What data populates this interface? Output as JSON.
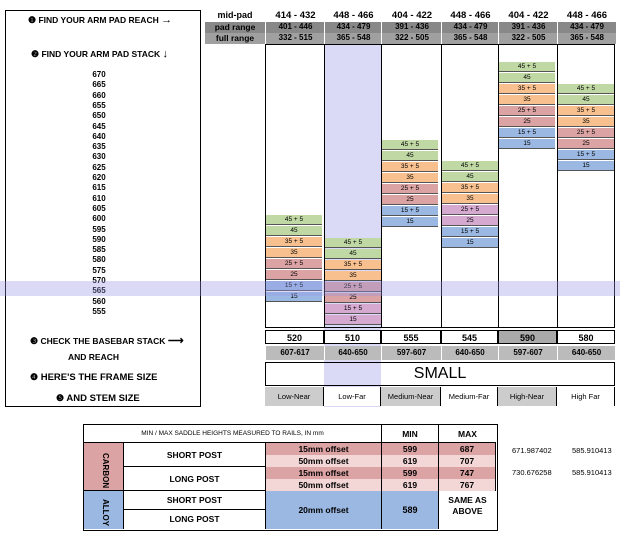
{
  "steps": {
    "step1": "FIND YOUR ARM PAD REACH",
    "step2": "FIND YOUR ARM PAD STACK",
    "step3": "CHECK THE BASEBAR STACK",
    "step3b": "AND REACH",
    "step4": "HERE'S THE FRAME SIZE",
    "step5": "AND STEM SIZE",
    "arrow_right": "→",
    "arrow_down": "↓",
    "arrow_long": "⟶"
  },
  "header": {
    "row_labels": [
      "mid-pad",
      "pad range",
      "full range"
    ],
    "columns": [
      {
        "mid": "414 - 432",
        "pad": "401 - 446",
        "full": "332 - 515"
      },
      {
        "mid": "448 - 466",
        "pad": "434 - 479",
        "full": "365 - 548"
      },
      {
        "mid": "404 - 422",
        "pad": "391 - 436",
        "full": "322 - 505"
      },
      {
        "mid": "448 - 466",
        "pad": "434 - 479",
        "full": "365 - 548"
      },
      {
        "mid": "404 - 422",
        "pad": "391 - 436",
        "full": "322 - 505"
      },
      {
        "mid": "448 - 466",
        "pad": "434 - 479",
        "full": "365 - 548"
      }
    ]
  },
  "stack_values": [
    "670",
    "665",
    "660",
    "655",
    "650",
    "645",
    "640",
    "635",
    "630",
    "625",
    "620",
    "615",
    "610",
    "605",
    "600",
    "595",
    "590",
    "585",
    "580",
    "575",
    "570",
    "565",
    "560",
    "555"
  ],
  "spacer_cells": {
    "c1": [
      "45 + 5",
      "45",
      "35 + 5",
      "35",
      "25 + 5",
      "25",
      "15 + 5",
      "15"
    ],
    "c2": [
      "45 + 5",
      "45",
      "35 + 5",
      "35",
      "25 + 5",
      "25",
      "15 + 5",
      "15"
    ],
    "c3": [
      "45 + 5",
      "45",
      "35 + 5",
      "35",
      "25 + 5",
      "25",
      "15 + 5",
      "15"
    ],
    "c4": [
      "45 + 5",
      "45",
      "35 + 5",
      "35",
      "25 + 5",
      "25",
      "15 + 5",
      "15"
    ],
    "c5": [
      "45 + 5",
      "45",
      "35 + 5",
      "35",
      "25 + 5",
      "25",
      "15 + 5",
      "15"
    ],
    "c6": [
      "45 + 5",
      "45",
      "35 + 5",
      "35",
      "25 + 5",
      "25",
      "15 + 5",
      "15"
    ]
  },
  "basebar_stack": [
    "520",
    "510",
    "555",
    "545",
    "590",
    "580"
  ],
  "basebar_reach": [
    "607-617",
    "640-650",
    "597-607",
    "640-650",
    "597-607",
    "640-650"
  ],
  "frame_size": "SMALL",
  "stems": [
    "Low-Near",
    "Low-Far",
    "Medium-Near",
    "Medium-Far",
    "High-Near",
    "High Far"
  ],
  "saddle": {
    "title": "MIN / MAX SADDLE HEIGHTS MEASURED TO RAILS, IN mm",
    "min_label": "MIN",
    "max_label": "MAX",
    "carbon_label": "CARBON",
    "alloy_label": "ALLOY",
    "short_post": "SHORT POST",
    "long_post": "LONG POST",
    "rows": [
      {
        "offset": "15mm offset",
        "min": "599",
        "max": "687"
      },
      {
        "offset": "50mm offset",
        "min": "619",
        "max": "707"
      },
      {
        "offset": "15mm offset",
        "min": "599",
        "max": "747"
      },
      {
        "offset": "50mm offset",
        "min": "619",
        "max": "767"
      }
    ],
    "alloy_offset": "20mm offset",
    "alloy_min": "589",
    "alloy_max": "SAME AS ABOVE",
    "side_values": [
      {
        "a": "671.987402",
        "b": "585.910413"
      },
      {
        "a": "730.676258",
        "b": "585.910413"
      }
    ]
  }
}
